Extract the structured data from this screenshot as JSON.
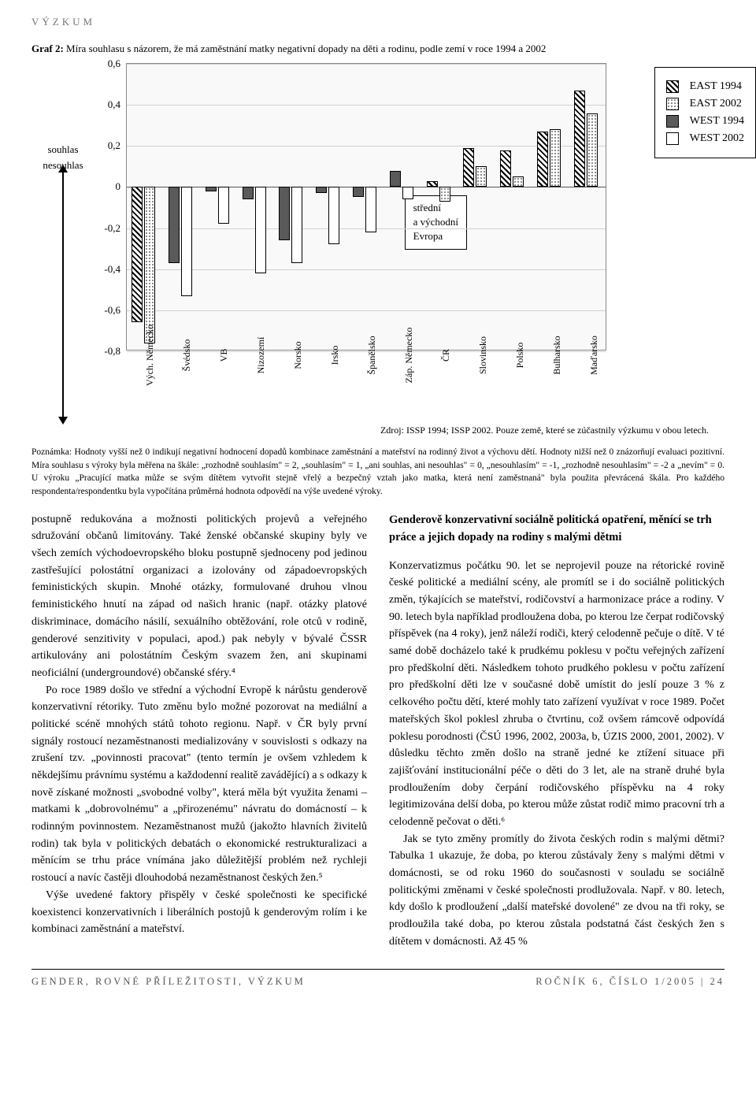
{
  "header": {
    "section": "VÝZKUM"
  },
  "chart": {
    "title_bold": "Graf 2:",
    "title_rest": " Míra souhlasu s názorem, že má zaměstnání matky negativní dopady na děti a rodinu, podle zemí v roce 1994 a 2002",
    "left_axis": {
      "top": "souhlas",
      "bottom": "nesouhlas"
    },
    "y_ticks": [
      "0,6",
      "0,4",
      "0,2",
      "0",
      "-0,2",
      "-0,4",
      "-0,6",
      "-0,8"
    ],
    "ylim": [
      -0.8,
      0.6
    ],
    "ytick_step": 0.2,
    "categories": [
      "Vých. Německo",
      "Švédsko",
      "VB",
      "Nizozemí",
      "Norsko",
      "Irsko",
      "Španělsko",
      "Záp. Německo",
      "ČR",
      "Slovinsko",
      "Polsko",
      "Bulharsko",
      "Maďarsko"
    ],
    "series": [
      {
        "name": "EAST 1994",
        "pattern": "hatch-diag",
        "values": [
          -0.66,
          null,
          null,
          null,
          null,
          null,
          null,
          null,
          0.03,
          0.19,
          0.18,
          0.27,
          0.47
        ]
      },
      {
        "name": "EAST 2002",
        "pattern": "hatch-dots",
        "values": [
          -0.76,
          null,
          null,
          null,
          null,
          null,
          null,
          null,
          -0.07,
          0.1,
          0.05,
          0.28,
          0.36
        ]
      },
      {
        "name": "WEST 1994",
        "pattern": "fill-solid",
        "values": [
          null,
          -0.37,
          -0.02,
          -0.06,
          -0.26,
          -0.03,
          -0.05,
          0.08,
          null,
          null,
          null,
          null,
          null
        ]
      },
      {
        "name": "WEST 2002",
        "pattern": "fill-white",
        "values": [
          null,
          -0.53,
          -0.18,
          -0.42,
          -0.37,
          -0.28,
          -0.22,
          -0.06,
          null,
          null,
          null,
          null,
          null
        ]
      }
    ],
    "annotation": "střední\na východní\nEvropa",
    "source": "Zdroj: ISSP 1994; ISSP 2002. Pouze země, které se zúčastnily výzkumu v obou letech.",
    "bg_color": "#f9f9f9",
    "grid_color": "#d0d0d0"
  },
  "note": {
    "text": "Poznámka: Hodnoty vyšší než 0 indikují negativní hodnocení dopadů kombinace zaměstnání a mateřství na rodinný život a výchovu dětí. Hodnoty nižší než 0 znázorňují evaluaci pozitivní. Míra souhlasu s výroky byla měřena na škále: „rozhodně souhlasím\" = 2, „souhlasím\" = 1, „ani souhlas, ani nesouhlas\" = 0, „nesouhlasím\" = -1, „rozhodně nesouhlasím\" = -2 a „nevím\" = 0. U výroku „Pracující matka může se svým dítětem vytvořit stejně vřelý a bezpečný vztah jako matka, která není zaměstnaná\" byla použita převrácená škála. Pro každého respondenta/respondentku byla vypočítána průměrná hodnota odpovědí na výše uvedené výroky."
  },
  "body": {
    "leftcol": {
      "p1": "postupně redukována a možnosti politických projevů a veřejného sdružování občanů limitovány. Také ženské občanské skupiny byly ve všech zemích východoevropského bloku postupně sjednoceny pod jedinou zastřešující polostátní organizaci a izolovány od západoevropských feministických skupin. Mnohé otázky, formulované druhou vlnou feministického hnutí na západ od našich hranic (např. otázky platové diskriminace, domácího násilí, sexuálního obtěžování, role otců v rodině, genderové senzitivity v populaci, apod.) pak nebyly v bývalé ČSSR artikulovány ani polostátním Českým svazem žen, ani skupinami neoficiální (undergroundové) občanské sféry.⁴",
      "p2": "Po roce 1989 došlo ve střední a východní Evropě k nárůstu genderově konzervativní rétoriky. Tuto změnu bylo možné pozorovat na mediální a politické scéně mnohých států tohoto regionu. Např. v ČR byly první signály rostoucí nezaměstnanosti medializovány v souvislosti s odkazy na zrušení tzv. „povinnosti pracovat\" (tento termín je ovšem vzhledem k někdejšímu právnímu systému a každodenní realitě zavádějící) a s odkazy k nově získané možnosti „svobodné volby\", která měla být využita ženami – matkami k „dobrovolnému\" a „přirozenému\" návratu do domácností – k rodinným povinnostem. Nezaměstnanost mužů (jakožto hlavních živitelů rodin) tak byla v politických debatách o ekonomické restrukturalizaci a měnícím se trhu práce vnímána jako důležitější problém než rychleji rostoucí a navíc častěji dlouhodobá nezaměstnanost českých žen.⁵",
      "p3": "Výše uvedené faktory přispěly v české společnosti ke specifické koexistenci konzervativních i liberálních postojů k genderovým rolím i ke kombinaci zaměstnání a mateřství."
    },
    "rightcol": {
      "heading": "Genderově konzervativní sociálně politická opatření, měnící se trh práce a jejich dopady na rodiny s malými dětmi",
      "p1": "Konzervatizmus počátku 90. let se neprojevil pouze na rétorické rovině české politické a mediální scény, ale promítl se i do sociálně politických změn, týkajících se mateřství, rodičovství a harmonizace práce a rodiny. V 90. letech byla například prodloužena doba, po kterou lze čerpat rodičovský příspěvek (na 4 roky), jenž náleží rodiči, který celodenně pečuje o dítě. V té samé době docházelo také k prudkému poklesu v počtu veřejných zařízení pro předškolní děti. Následkem tohoto prudkého poklesu v počtu zařízení pro předškolní děti lze v současné době umístit do jeslí pouze 3 % z celkového počtu dětí, které mohly tato zařízení využívat v roce 1989. Počet mateřských škol poklesl zhruba o čtvrtinu, což ovšem rámcově odpovídá poklesu porodnosti (ČSÚ 1996, 2002, 2003a, b, ÚZIS 2000, 2001, 2002). V důsledku těchto změn došlo na straně jedné ke ztížení situace při zajišťování institucionální péče o děti do 3 let, ale na straně druhé byla prodloužením doby čerpání rodičovského příspěvku na 4 roky legitimizována delší doba, po kterou může zůstat rodič mimo pracovní trh a celodenně pečovat o děti.⁶",
      "p2": "Jak se tyto změny promítly do života českých rodin s malými dětmi? Tabulka 1 ukazuje, že doba, po kterou zůstávaly ženy s malými dětmi v domácnosti, se od roku 1960 do současnosti v souladu se sociálně politickými změnami v české společnosti prodlužovala. Např. v 80. letech, kdy došlo k prodloužení „další mateřské dovolené\" ze dvou na tři roky, se prodloužila také doba, po kterou zůstala podstatná část českých žen s dítětem v domácnosti. Až 45 %"
    }
  },
  "footer": {
    "left": "GENDER, ROVNÉ PŘÍLEŽITOSTI, VÝZKUM",
    "right": "ROČNÍK 6, ČÍSLO 1/2005 | 24"
  }
}
